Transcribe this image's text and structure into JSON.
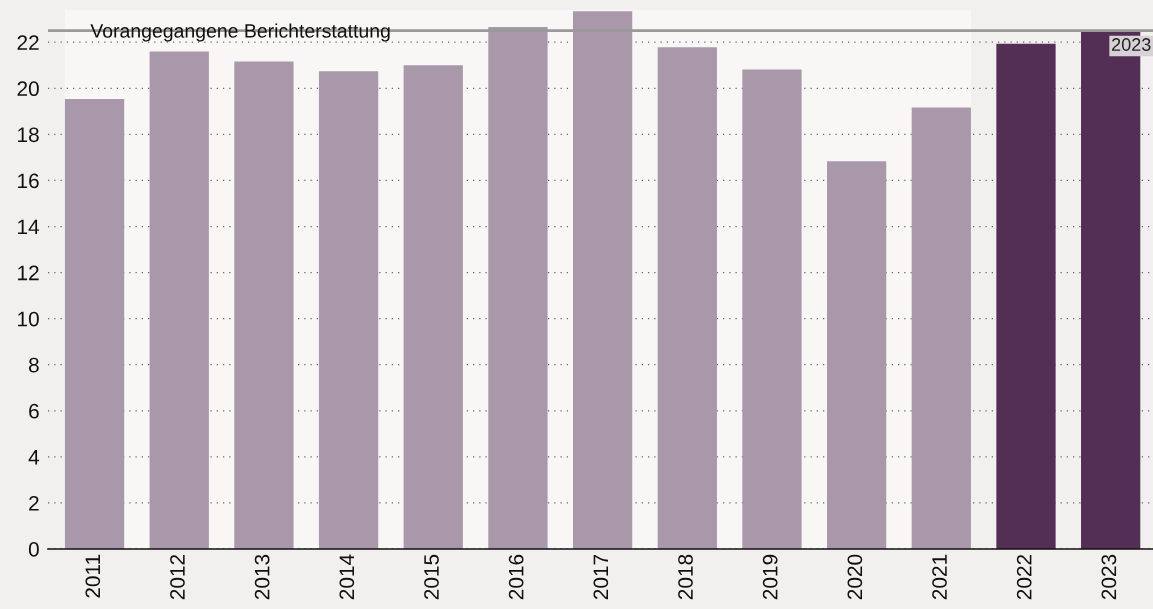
{
  "chart_data": {
    "type": "bar",
    "categories": [
      "2011",
      "2012",
      "2013",
      "2014",
      "2015",
      "2016",
      "2017",
      "2018",
      "2019",
      "2020",
      "2021",
      "2022",
      "2023"
    ],
    "values": [
      19.54,
      21.6,
      21.16,
      20.74,
      21.0,
      22.66,
      23.35,
      21.78,
      20.82,
      16.83,
      19.17,
      21.93,
      22.5
    ],
    "colors": [
      "#a898aa",
      "#a898aa",
      "#a898aa",
      "#a898aa",
      "#a898aa",
      "#a898aa",
      "#a898aa",
      "#a898aa",
      "#a898aa",
      "#a898aa",
      "#a898aa",
      "#532f55",
      "#532f55"
    ],
    "ylim": [
      0,
      23.4
    ],
    "yticks": [
      0,
      2,
      4,
      6,
      8,
      10,
      12,
      14,
      16,
      18,
      20,
      22
    ],
    "grid": "y",
    "ref_lines": [
      {
        "axis": "y",
        "value": 22.5,
        "color": "#999999",
        "line_style": "solid"
      }
    ],
    "annotations": [
      {
        "text": "2023",
        "x": "2023",
        "y": 22.5
      }
    ],
    "bands": [
      {
        "axis": "x",
        "from": "2011",
        "to": "2021",
        "label": "Vorangegangene Berichterstattung",
        "color": "#f8f7f6"
      }
    ]
  }
}
